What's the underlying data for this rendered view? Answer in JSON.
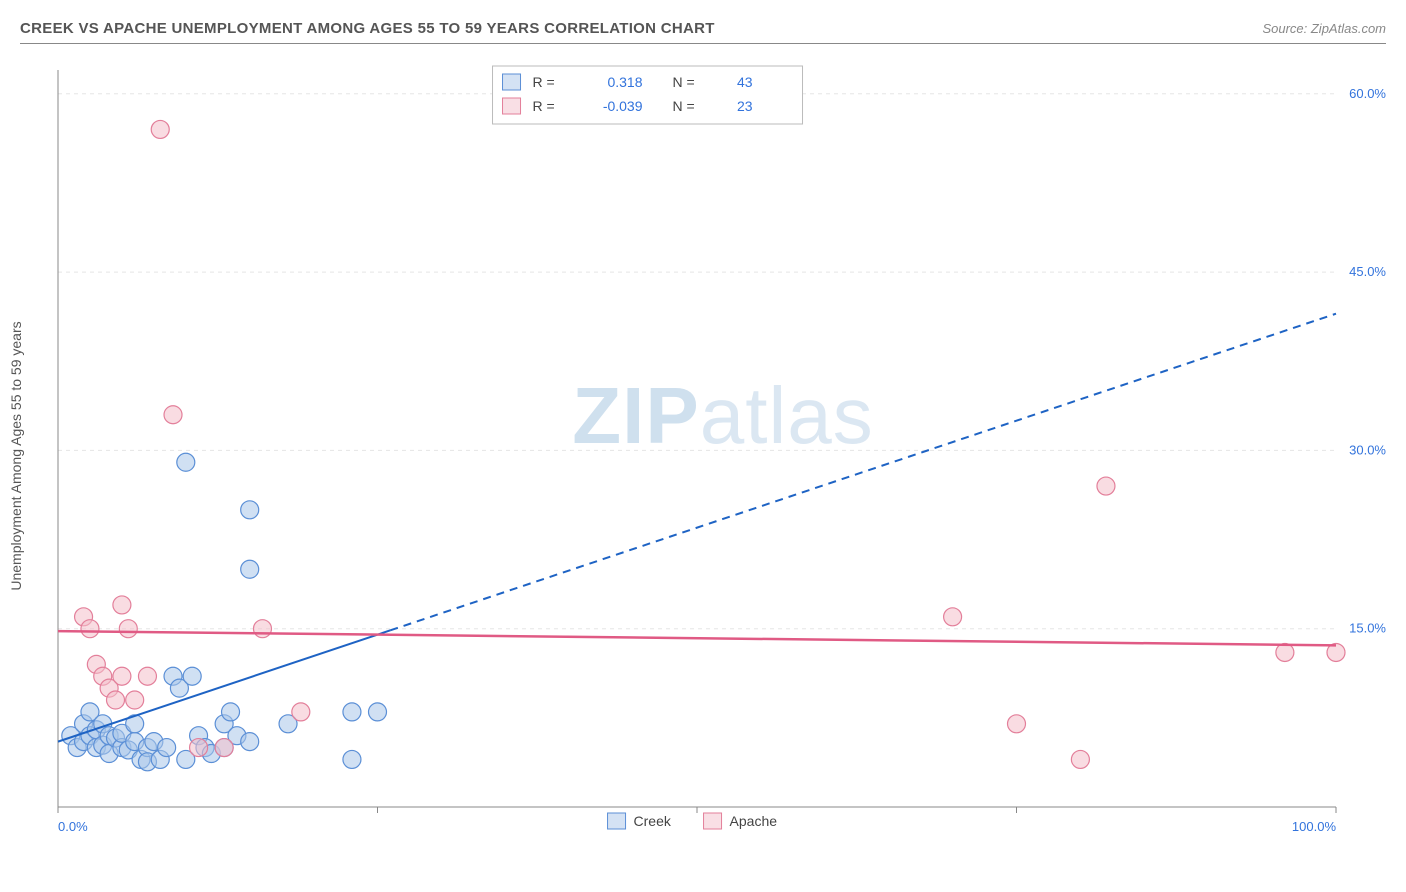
{
  "header": {
    "title": "CREEK VS APACHE UNEMPLOYMENT AMONG AGES 55 TO 59 YEARS CORRELATION CHART",
    "source": "Source: ZipAtlas.com"
  },
  "ylabel": "Unemployment Among Ages 55 to 59 years",
  "watermark": {
    "zip": "ZIP",
    "atlas": "atlas"
  },
  "chart": {
    "type": "scatter",
    "background_color": "#ffffff",
    "grid_color": "#e5e5e5",
    "grid_dash": "4,4",
    "axis_color": "#888888",
    "xlim": [
      0,
      100
    ],
    "ylim": [
      0,
      62
    ],
    "xticks": [
      0,
      25,
      50,
      75,
      100
    ],
    "xtick_labels": [
      "0.0%",
      "",
      "",
      "",
      "100.0%"
    ],
    "yticks": [
      15,
      30,
      45,
      60
    ],
    "ytick_labels": [
      "15.0%",
      "30.0%",
      "45.0%",
      "60.0%"
    ],
    "tick_label_color": "#3273dc",
    "tick_label_fontsize": 13,
    "marker_radius": 9,
    "marker_stroke_width": 1.2,
    "series": [
      {
        "name": "Creek",
        "fill_color": "#a9c6ea",
        "stroke_color": "#5b8fd6",
        "fill_opacity": 0.55,
        "points": [
          [
            1,
            6
          ],
          [
            1.5,
            5
          ],
          [
            2,
            7
          ],
          [
            2,
            5.5
          ],
          [
            2.5,
            8
          ],
          [
            2.5,
            6
          ],
          [
            3,
            5
          ],
          [
            3,
            6.5
          ],
          [
            3.5,
            7
          ],
          [
            3.5,
            5.2
          ],
          [
            4,
            6
          ],
          [
            4,
            4.5
          ],
          [
            4.5,
            5.8
          ],
          [
            5,
            5
          ],
          [
            5,
            6.2
          ],
          [
            5.5,
            4.8
          ],
          [
            6,
            5.5
          ],
          [
            6,
            7
          ],
          [
            6.5,
            4
          ],
          [
            7,
            5
          ],
          [
            7,
            3.8
          ],
          [
            7.5,
            5.5
          ],
          [
            8,
            4
          ],
          [
            8.5,
            5
          ],
          [
            9,
            11
          ],
          [
            9.5,
            10
          ],
          [
            10,
            4
          ],
          [
            10.5,
            11
          ],
          [
            11,
            6
          ],
          [
            11.5,
            5
          ],
          [
            12,
            4.5
          ],
          [
            13,
            7
          ],
          [
            13,
            5
          ],
          [
            13.5,
            8
          ],
          [
            14,
            6
          ],
          [
            15,
            5.5
          ],
          [
            10,
            29
          ],
          [
            15,
            25
          ],
          [
            15,
            20
          ],
          [
            18,
            7
          ],
          [
            23,
            8
          ],
          [
            23,
            4
          ],
          [
            25,
            8
          ]
        ],
        "trend": {
          "slope": 0.36,
          "intercept": 5.5,
          "x_solid_end": 26,
          "x_dash_end": 100,
          "color": "#1e63c4",
          "width": 2
        }
      },
      {
        "name": "Apache",
        "fill_color": "#f4c0cb",
        "stroke_color": "#e37f9a",
        "fill_opacity": 0.55,
        "points": [
          [
            2,
            16
          ],
          [
            2.5,
            15
          ],
          [
            3,
            12
          ],
          [
            3.5,
            11
          ],
          [
            4,
            10
          ],
          [
            4.5,
            9
          ],
          [
            5,
            11
          ],
          [
            5,
            17
          ],
          [
            5.5,
            15
          ],
          [
            6,
            9
          ],
          [
            7,
            11
          ],
          [
            8,
            57
          ],
          [
            9,
            33
          ],
          [
            11,
            5
          ],
          [
            13,
            5
          ],
          [
            16,
            15
          ],
          [
            19,
            8
          ],
          [
            70,
            16
          ],
          [
            75,
            7
          ],
          [
            80,
            4
          ],
          [
            82,
            27
          ],
          [
            96,
            13
          ],
          [
            100,
            13
          ]
        ],
        "trend": {
          "slope": -0.012,
          "intercept": 14.8,
          "x_solid_end": 100,
          "x_dash_end": 100,
          "color": "#e05a84",
          "width": 2.5
        }
      }
    ],
    "stats_legend": {
      "border_color": "#bbbbbb",
      "bg_color": "#ffffff",
      "r_label": "R",
      "n_label": "N",
      "value_color": "#3273dc",
      "rows": [
        {
          "swatch_fill": "#a9c6ea",
          "swatch_stroke": "#5b8fd6",
          "r": "0.318",
          "n": "43"
        },
        {
          "swatch_fill": "#f4c0cb",
          "swatch_stroke": "#e37f9a",
          "r": "-0.039",
          "n": "23"
        }
      ]
    },
    "xlegend": [
      {
        "label": "Creek",
        "swatch_fill": "#a9c6ea",
        "swatch_stroke": "#5b8fd6"
      },
      {
        "label": "Apache",
        "swatch_fill": "#f4c0cb",
        "swatch_stroke": "#e37f9a"
      }
    ]
  }
}
